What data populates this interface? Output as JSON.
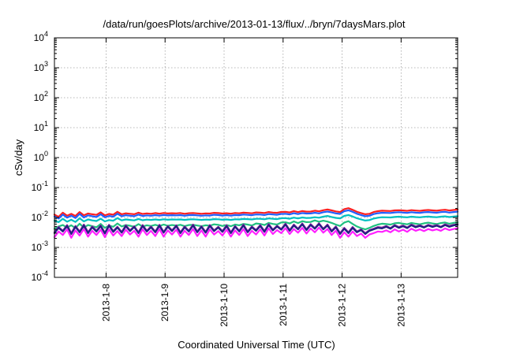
{
  "chart_data": {
    "type": "line",
    "title": "/data/run/goesPlots/archive/2013-01-13/flux/../bryn/7daysMars.plot",
    "xlabel": "Coordinated Universal Time (UTC)",
    "ylabel": "cSv/day",
    "yscale": "log",
    "ylim": [
      0.0001,
      10000
    ],
    "xlim": [
      "2013-01-07T03:00",
      "2013-01-13T23:00"
    ],
    "grid": true,
    "y_ticks": [
      {
        "base": "10",
        "exp": "-4",
        "value": 0.0001
      },
      {
        "base": "10",
        "exp": "-3",
        "value": 0.001
      },
      {
        "base": "10",
        "exp": "-2",
        "value": 0.01
      },
      {
        "base": "10",
        "exp": "-1",
        "value": 0.1
      },
      {
        "base": "10",
        "exp": "0",
        "value": 1
      },
      {
        "base": "10",
        "exp": "1",
        "value": 10
      },
      {
        "base": "10",
        "exp": "2",
        "value": 100
      },
      {
        "base": "10",
        "exp": "3",
        "value": 1000
      },
      {
        "base": "10",
        "exp": "4",
        "value": 10000
      }
    ],
    "x_ticks": [
      {
        "label": "2013-1-8",
        "value": "2013-01-08T00:00"
      },
      {
        "label": "2013-1-9",
        "value": "2013-01-09T00:00"
      },
      {
        "label": "2013-1-10",
        "value": "2013-01-10T00:00"
      },
      {
        "label": "2013-1-11",
        "value": "2013-01-11T00:00"
      },
      {
        "label": "2013-1-12",
        "value": "2013-01-12T00:00"
      },
      {
        "label": "2013-1-13",
        "value": "2013-01-13T00:00"
      }
    ],
    "series": [
      {
        "color": "#ff2020",
        "values": [
          0.0125,
          0.0105,
          0.0145,
          0.0115,
          0.0132,
          0.0112,
          0.0152,
          0.0118,
          0.0136,
          0.0128,
          0.0122,
          0.0148,
          0.0118,
          0.0131,
          0.0124,
          0.0155,
          0.0128,
          0.0138,
          0.0133,
          0.0128,
          0.0145,
          0.0131,
          0.0137,
          0.0133,
          0.014,
          0.0134,
          0.0141,
          0.0136,
          0.0139,
          0.0137,
          0.014,
          0.0133,
          0.0139,
          0.014,
          0.0137,
          0.0133,
          0.0137,
          0.0135,
          0.0143,
          0.014,
          0.0135,
          0.0139,
          0.0134,
          0.0141,
          0.0138,
          0.0145,
          0.0142,
          0.0138,
          0.0147,
          0.0146,
          0.0141,
          0.0152,
          0.0146,
          0.0143,
          0.0153,
          0.0155,
          0.0147,
          0.0163,
          0.0151,
          0.0164,
          0.0157,
          0.0158,
          0.0168,
          0.016,
          0.0175,
          0.0185,
          0.0172,
          0.0159,
          0.0152,
          0.019,
          0.0205,
          0.018,
          0.0155,
          0.014,
          0.0128,
          0.0132,
          0.0152,
          0.0162,
          0.0168,
          0.0166,
          0.0164,
          0.0172,
          0.0175,
          0.0171,
          0.0166,
          0.0176,
          0.017,
          0.0166,
          0.0174,
          0.0178,
          0.0172,
          0.0168,
          0.0176,
          0.0181,
          0.0171,
          0.0178,
          0.0184
        ]
      },
      {
        "color": "#2060ff",
        "values": [
          0.0108,
          0.0092,
          0.0125,
          0.0098,
          0.0115,
          0.0096,
          0.0131,
          0.01,
          0.0118,
          0.011,
          0.0104,
          0.0128,
          0.0101,
          0.0113,
          0.0106,
          0.0133,
          0.011,
          0.0119,
          0.0114,
          0.011,
          0.0124,
          0.0112,
          0.0118,
          0.0114,
          0.012,
          0.0115,
          0.0121,
          0.0117,
          0.0119,
          0.0118,
          0.012,
          0.0114,
          0.012,
          0.0121,
          0.0118,
          0.0114,
          0.0118,
          0.0116,
          0.0123,
          0.0121,
          0.0116,
          0.012,
          0.0115,
          0.0121,
          0.0119,
          0.0125,
          0.0122,
          0.0119,
          0.0126,
          0.0125,
          0.0121,
          0.013,
          0.0126,
          0.0123,
          0.0131,
          0.0133,
          0.0127,
          0.0139,
          0.013,
          0.014,
          0.0135,
          0.0136,
          0.0144,
          0.0137,
          0.015,
          0.0158,
          0.0147,
          0.0137,
          0.0131,
          0.0162,
          0.0174,
          0.0154,
          0.0133,
          0.012,
          0.011,
          0.0114,
          0.013,
          0.0139,
          0.0144,
          0.0142,
          0.0141,
          0.0147,
          0.015,
          0.0146,
          0.0142,
          0.015,
          0.0145,
          0.0142,
          0.0149,
          0.0152,
          0.0147,
          0.0144,
          0.0151,
          0.0155,
          0.0146,
          0.0152,
          0.0157
        ]
      },
      {
        "color": "#00c0c0",
        "values": [
          0.0078,
          0.007,
          0.009,
          0.0072,
          0.0084,
          0.0071,
          0.0094,
          0.0074,
          0.0086,
          0.008,
          0.0076,
          0.0091,
          0.0074,
          0.0082,
          0.0078,
          0.0095,
          0.008,
          0.0086,
          0.0083,
          0.008,
          0.0089,
          0.0081,
          0.0085,
          0.0083,
          0.0086,
          0.0083,
          0.0087,
          0.0084,
          0.0086,
          0.0085,
          0.0086,
          0.0083,
          0.0086,
          0.0087,
          0.0085,
          0.0083,
          0.0085,
          0.0084,
          0.0088,
          0.0087,
          0.0084,
          0.0086,
          0.0083,
          0.0087,
          0.0086,
          0.0089,
          0.0088,
          0.0086,
          0.009,
          0.009,
          0.0087,
          0.0093,
          0.009,
          0.0088,
          0.0094,
          0.0095,
          0.0091,
          0.0099,
          0.0093,
          0.01,
          0.0096,
          0.0097,
          0.0102,
          0.0098,
          0.0106,
          0.0112,
          0.0104,
          0.0097,
          0.0093,
          0.0113,
          0.0121,
          0.0108,
          0.0094,
          0.0086,
          0.0079,
          0.0082,
          0.0092,
          0.0098,
          0.0102,
          0.0101,
          0.01,
          0.0104,
          0.0106,
          0.0103,
          0.0101,
          0.0106,
          0.0103,
          0.0101,
          0.0105,
          0.0107,
          0.0104,
          0.0102,
          0.0106,
          0.0109,
          0.0103,
          0.0107,
          0.011
        ]
      },
      {
        "color": "#20c080",
        "values": [
          0.0042,
          0.005,
          0.0056,
          0.0046,
          0.0055,
          0.0044,
          0.0062,
          0.0046,
          0.0056,
          0.0051,
          0.0047,
          0.0061,
          0.0045,
          0.0054,
          0.0049,
          0.0063,
          0.005,
          0.0056,
          0.0053,
          0.0049,
          0.006,
          0.005,
          0.0055,
          0.0052,
          0.0057,
          0.0052,
          0.0058,
          0.0053,
          0.0056,
          0.0054,
          0.0057,
          0.0051,
          0.0056,
          0.0057,
          0.0054,
          0.0051,
          0.0055,
          0.0053,
          0.0059,
          0.0057,
          0.0052,
          0.0056,
          0.0051,
          0.0058,
          0.0055,
          0.0061,
          0.0058,
          0.0054,
          0.0063,
          0.0061,
          0.0056,
          0.0066,
          0.0061,
          0.0058,
          0.0068,
          0.0069,
          0.0063,
          0.0074,
          0.0065,
          0.0075,
          0.007,
          0.0071,
          0.008,
          0.0072,
          0.0078,
          0.0073,
          0.0066,
          0.0058,
          0.0052,
          0.0068,
          0.0075,
          0.0061,
          0.005,
          0.0044,
          0.004,
          0.0045,
          0.0052,
          0.0058,
          0.0062,
          0.006,
          0.0058,
          0.0064,
          0.0066,
          0.0062,
          0.0059,
          0.0066,
          0.0062,
          0.0059,
          0.0064,
          0.0067,
          0.0063,
          0.006,
          0.0065,
          0.0068,
          0.0062,
          0.0066,
          0.0069
        ]
      },
      {
        "color": "#9020a0",
        "values": [
          0.0032,
          0.0048,
          0.0036,
          0.0056,
          0.003,
          0.0052,
          0.0034,
          0.0058,
          0.0032,
          0.005,
          0.0036,
          0.0054,
          0.0031,
          0.0057,
          0.0035,
          0.0049,
          0.0033,
          0.0055,
          0.0037,
          0.0051,
          0.0032,
          0.0056,
          0.0036,
          0.005,
          0.0034,
          0.0057,
          0.0033,
          0.0052,
          0.0037,
          0.0055,
          0.0032,
          0.005,
          0.0036,
          0.0058,
          0.0034,
          0.0051,
          0.0033,
          0.0056,
          0.0037,
          0.0049,
          0.0035,
          0.0055,
          0.0032,
          0.0052,
          0.0036,
          0.0058,
          0.0034,
          0.005,
          0.0038,
          0.0056,
          0.0035,
          0.006,
          0.0039,
          0.0053,
          0.0041,
          0.0062,
          0.0038,
          0.0058,
          0.0042,
          0.0063,
          0.004,
          0.006,
          0.0044,
          0.0064,
          0.0042,
          0.0058,
          0.0036,
          0.005,
          0.003,
          0.0045,
          0.0032,
          0.0048,
          0.0034,
          0.004,
          0.003,
          0.0038,
          0.0042,
          0.0048,
          0.0046,
          0.0052,
          0.0044,
          0.0056,
          0.0048,
          0.0054,
          0.0046,
          0.0058,
          0.005,
          0.0055,
          0.0048,
          0.0057,
          0.0051,
          0.0056,
          0.0049,
          0.0059,
          0.0052,
          0.0057,
          0.006
        ]
      },
      {
        "color": "#202080",
        "values": [
          0.003,
          0.0045,
          0.0034,
          0.0052,
          0.0028,
          0.0049,
          0.0032,
          0.0054,
          0.003,
          0.0047,
          0.0034,
          0.0051,
          0.0029,
          0.0053,
          0.0033,
          0.0046,
          0.0031,
          0.0051,
          0.0035,
          0.0048,
          0.003,
          0.0052,
          0.0034,
          0.0047,
          0.0032,
          0.0053,
          0.0031,
          0.0049,
          0.0035,
          0.0051,
          0.003,
          0.0047,
          0.0034,
          0.0054,
          0.0032,
          0.0048,
          0.0031,
          0.0052,
          0.0035,
          0.0046,
          0.0033,
          0.0051,
          0.003,
          0.0049,
          0.0034,
          0.0054,
          0.0032,
          0.0047,
          0.0036,
          0.0052,
          0.0033,
          0.0056,
          0.0037,
          0.005,
          0.0039,
          0.0058,
          0.0036,
          0.0054,
          0.004,
          0.0059,
          0.0038,
          0.0056,
          0.0042,
          0.006,
          0.004,
          0.0054,
          0.0034,
          0.0047,
          0.0028,
          0.0042,
          0.003,
          0.0045,
          0.0032,
          0.0038,
          0.0028,
          0.0036,
          0.004,
          0.0045,
          0.0043,
          0.0049,
          0.0042,
          0.0053,
          0.0045,
          0.0051,
          0.0044,
          0.0055,
          0.0047,
          0.0052,
          0.0046,
          0.0054,
          0.0048,
          0.0053,
          0.0047,
          0.0056,
          0.0049,
          0.0054,
          0.0057
        ]
      },
      {
        "color": "#ff20ff",
        "values": [
          0.0022,
          0.0034,
          0.0026,
          0.004,
          0.0021,
          0.0037,
          0.0025,
          0.0041,
          0.0023,
          0.0036,
          0.0026,
          0.0039,
          0.0022,
          0.004,
          0.0025,
          0.0035,
          0.0024,
          0.0039,
          0.0027,
          0.0036,
          0.0023,
          0.004,
          0.0026,
          0.0036,
          0.0024,
          0.0041,
          0.0023,
          0.0037,
          0.0027,
          0.0039,
          0.0023,
          0.0036,
          0.0026,
          0.0041,
          0.0024,
          0.0037,
          0.0023,
          0.004,
          0.0027,
          0.0035,
          0.0025,
          0.0039,
          0.0023,
          0.0037,
          0.0026,
          0.0041,
          0.0024,
          0.0036,
          0.0027,
          0.004,
          0.0025,
          0.0043,
          0.0028,
          0.0038,
          0.003,
          0.0044,
          0.0028,
          0.0041,
          0.0031,
          0.0045,
          0.0029,
          0.0043,
          0.0032,
          0.0046,
          0.0031,
          0.0041,
          0.0026,
          0.0036,
          0.0021,
          0.0032,
          0.0023,
          0.0034,
          0.0024,
          0.0029,
          0.0021,
          0.0027,
          0.003,
          0.0034,
          0.0033,
          0.0037,
          0.0032,
          0.004,
          0.0034,
          0.0039,
          0.0033,
          0.0042,
          0.0036,
          0.004,
          0.0035,
          0.0041,
          0.0037,
          0.004,
          0.0036,
          0.0043,
          0.0038,
          0.0041,
          0.0044
        ]
      }
    ]
  }
}
